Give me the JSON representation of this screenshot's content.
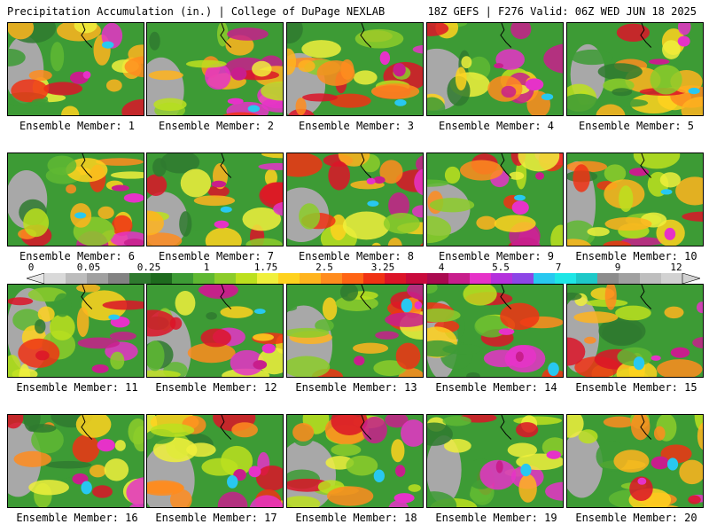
{
  "header": {
    "left": "Precipitation Accumulation (in.) | College of DuPage NEXLAB",
    "right": "18Z GEFS | F276 Valid: 06Z WED JUN 18 2025"
  },
  "colorbar": {
    "labels": [
      "0",
      "0.05",
      "0.25",
      "1",
      "1.75",
      "2.5",
      "3.25",
      "4",
      "5.5",
      "7",
      "9",
      "12"
    ],
    "colors": [
      "#d9d9d9",
      "#bcbcbc",
      "#a0a0a0",
      "#828282",
      "#2f7a2f",
      "#1e6b1e",
      "#3d9b35",
      "#5fb832",
      "#8ccc2a",
      "#bce01e",
      "#f0f03c",
      "#ffd21e",
      "#ffb41e",
      "#ff8c1e",
      "#ff6414",
      "#f03214",
      "#dc1428",
      "#c80a3c",
      "#aa0a50",
      "#c81e8c",
      "#e632c8",
      "#b432dc",
      "#8c46e6",
      "#28c8f0",
      "#1ee6e6",
      "#1ec8c8",
      "#8c8c8c",
      "#a0a0a0",
      "#bebebe",
      "#d2d2d2"
    ]
  },
  "members": [
    {
      "label": "Ensemble Member: 1"
    },
    {
      "label": "Ensemble Member: 2"
    },
    {
      "label": "Ensemble Member: 3"
    },
    {
      "label": "Ensemble Member: 4"
    },
    {
      "label": "Ensemble Member: 5"
    },
    {
      "label": "Ensemble Member: 6"
    },
    {
      "label": "Ensemble Member: 7"
    },
    {
      "label": "Ensemble Member: 8"
    },
    {
      "label": "Ensemble Member: 9"
    },
    {
      "label": "Ensemble Member: 10"
    },
    {
      "label": "Ensemble Member: 11"
    },
    {
      "label": "Ensemble Member: 12"
    },
    {
      "label": "Ensemble Member: 13"
    },
    {
      "label": "Ensemble Member: 14"
    },
    {
      "label": "Ensemble Member: 15"
    },
    {
      "label": "Ensemble Member: 16"
    },
    {
      "label": "Ensemble Member: 17"
    },
    {
      "label": "Ensemble Member: 18"
    },
    {
      "label": "Ensemble Member: 19"
    },
    {
      "label": "Ensemble Member: 20"
    }
  ]
}
